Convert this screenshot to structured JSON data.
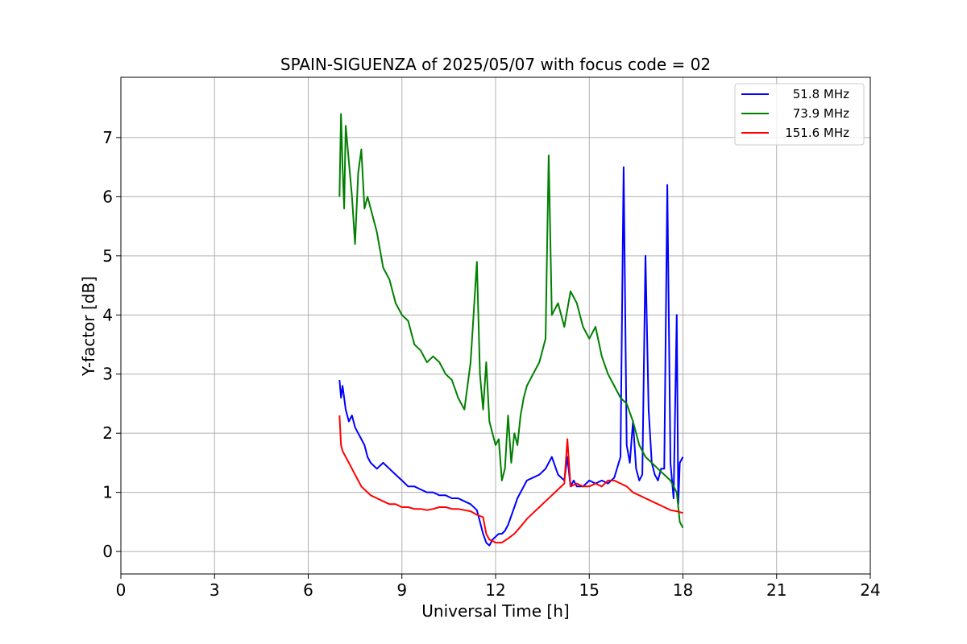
{
  "chart_data": {
    "type": "line",
    "title": "SPAIN-SIGUENZA of 2025/05/07 with focus code = 02",
    "xlabel": "Universal Time [h]",
    "ylabel": "Y-factor [dB]",
    "xlim": [
      0,
      24
    ],
    "ylim": [
      -0.38,
      8.02
    ],
    "xticks": [
      0,
      3,
      6,
      9,
      12,
      15,
      18,
      21,
      24
    ],
    "yticks": [
      0,
      1,
      2,
      3,
      4,
      5,
      6,
      7
    ],
    "grid": true,
    "legend_position": "top-right",
    "series": [
      {
        "name": "51.8 MHz",
        "color": "#0000ff",
        "x": [
          7.0,
          7.05,
          7.1,
          7.2,
          7.3,
          7.4,
          7.5,
          7.6,
          7.7,
          7.8,
          7.9,
          8.0,
          8.2,
          8.4,
          8.6,
          8.8,
          9.0,
          9.2,
          9.4,
          9.6,
          9.8,
          10.0,
          10.2,
          10.4,
          10.6,
          10.8,
          11.0,
          11.2,
          11.4,
          11.6,
          11.7,
          11.8,
          11.9,
          12.0,
          12.1,
          12.2,
          12.3,
          12.4,
          12.5,
          12.6,
          12.7,
          12.8,
          12.9,
          13.0,
          13.2,
          13.4,
          13.6,
          13.8,
          14.0,
          14.2,
          14.3,
          14.4,
          14.5,
          14.6,
          14.8,
          15.0,
          15.2,
          15.4,
          15.6,
          15.8,
          16.0,
          16.1,
          16.2,
          16.3,
          16.4,
          16.5,
          16.6,
          16.7,
          16.8,
          16.9,
          17.0,
          17.1,
          17.2,
          17.3,
          17.4,
          17.5,
          17.6,
          17.7,
          17.8,
          17.85,
          17.9,
          18.0
        ],
        "values": [
          2.9,
          2.6,
          2.8,
          2.4,
          2.2,
          2.3,
          2.1,
          2.0,
          1.9,
          1.8,
          1.6,
          1.5,
          1.4,
          1.5,
          1.4,
          1.3,
          1.2,
          1.1,
          1.1,
          1.05,
          1.0,
          1.0,
          0.95,
          0.95,
          0.9,
          0.9,
          0.85,
          0.8,
          0.7,
          0.3,
          0.15,
          0.1,
          0.2,
          0.25,
          0.3,
          0.3,
          0.35,
          0.45,
          0.6,
          0.75,
          0.9,
          1.0,
          1.1,
          1.2,
          1.25,
          1.3,
          1.4,
          1.6,
          1.3,
          1.2,
          1.6,
          1.1,
          1.2,
          1.1,
          1.1,
          1.2,
          1.15,
          1.2,
          1.15,
          1.25,
          1.6,
          6.5,
          1.8,
          1.5,
          2.2,
          1.4,
          1.2,
          1.3,
          5.0,
          2.4,
          1.5,
          1.3,
          1.2,
          1.4,
          1.4,
          6.2,
          1.5,
          0.9,
          4.0,
          0.8,
          1.5,
          1.6
        ]
      },
      {
        "name": "73.9 MHz",
        "color": "#008000",
        "x": [
          7.0,
          7.05,
          7.1,
          7.15,
          7.2,
          7.3,
          7.4,
          7.5,
          7.6,
          7.7,
          7.8,
          7.9,
          8.0,
          8.2,
          8.4,
          8.6,
          8.8,
          9.0,
          9.2,
          9.4,
          9.6,
          9.8,
          10.0,
          10.2,
          10.4,
          10.6,
          10.8,
          11.0,
          11.2,
          11.4,
          11.5,
          11.6,
          11.7,
          11.8,
          11.9,
          12.0,
          12.1,
          12.2,
          12.3,
          12.4,
          12.5,
          12.6,
          12.7,
          12.8,
          12.9,
          13.0,
          13.2,
          13.4,
          13.6,
          13.7,
          13.8,
          14.0,
          14.2,
          14.4,
          14.6,
          14.8,
          15.0,
          15.2,
          15.4,
          15.6,
          15.8,
          16.0,
          16.2,
          16.4,
          16.6,
          16.8,
          17.0,
          17.2,
          17.4,
          17.6,
          17.8,
          17.9,
          18.0
        ],
        "values": [
          6.0,
          7.4,
          6.5,
          5.8,
          7.2,
          6.6,
          6.0,
          5.2,
          6.4,
          6.8,
          5.8,
          6.0,
          5.8,
          5.4,
          4.8,
          4.6,
          4.2,
          4.0,
          3.9,
          3.5,
          3.4,
          3.2,
          3.3,
          3.2,
          3.0,
          2.9,
          2.6,
          2.4,
          3.2,
          4.9,
          3.0,
          2.4,
          3.2,
          2.2,
          2.0,
          1.8,
          1.9,
          1.2,
          1.4,
          2.3,
          1.5,
          2.0,
          1.8,
          2.3,
          2.6,
          2.8,
          3.0,
          3.2,
          3.6,
          6.7,
          4.0,
          4.2,
          3.8,
          4.4,
          4.2,
          3.8,
          3.6,
          3.8,
          3.3,
          3.0,
          2.8,
          2.6,
          2.5,
          2.2,
          1.8,
          1.6,
          1.5,
          1.4,
          1.3,
          1.2,
          1.0,
          0.5,
          0.4
        ]
      },
      {
        "name": "151.6 MHz",
        "color": "#ff0000",
        "x": [
          7.0,
          7.05,
          7.1,
          7.2,
          7.3,
          7.4,
          7.5,
          7.6,
          7.7,
          7.8,
          7.9,
          8.0,
          8.2,
          8.4,
          8.6,
          8.8,
          9.0,
          9.2,
          9.4,
          9.6,
          9.8,
          10.0,
          10.2,
          10.4,
          10.6,
          10.8,
          11.0,
          11.2,
          11.4,
          11.6,
          11.7,
          11.8,
          11.9,
          12.0,
          12.2,
          12.4,
          12.6,
          12.8,
          13.0,
          13.2,
          13.4,
          13.6,
          13.8,
          14.0,
          14.2,
          14.3,
          14.4,
          14.6,
          14.8,
          15.0,
          15.2,
          15.4,
          15.6,
          15.8,
          16.0,
          16.2,
          16.4,
          16.6,
          16.8,
          17.0,
          17.2,
          17.4,
          17.6,
          17.8,
          18.0
        ],
        "values": [
          2.3,
          1.8,
          1.7,
          1.6,
          1.5,
          1.4,
          1.3,
          1.2,
          1.1,
          1.05,
          1.0,
          0.95,
          0.9,
          0.85,
          0.8,
          0.8,
          0.75,
          0.75,
          0.72,
          0.72,
          0.7,
          0.72,
          0.75,
          0.75,
          0.72,
          0.72,
          0.7,
          0.68,
          0.62,
          0.58,
          0.3,
          0.2,
          0.18,
          0.15,
          0.15,
          0.22,
          0.3,
          0.42,
          0.55,
          0.65,
          0.75,
          0.85,
          0.95,
          1.05,
          1.15,
          1.9,
          1.1,
          1.15,
          1.1,
          1.1,
          1.15,
          1.1,
          1.2,
          1.2,
          1.15,
          1.1,
          1.0,
          0.95,
          0.9,
          0.85,
          0.8,
          0.75,
          0.7,
          0.68,
          0.65
        ]
      }
    ]
  }
}
